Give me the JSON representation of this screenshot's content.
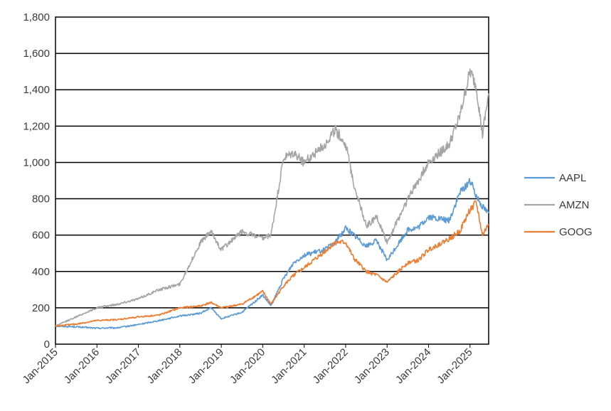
{
  "chart_data": {
    "type": "line",
    "title": "",
    "xlabel": "",
    "ylabel": "",
    "ylim": [
      0,
      1800
    ],
    "yticks": [
      "0",
      "200",
      "400",
      "600",
      "800",
      "1,000",
      "1,200",
      "1,400",
      "1,600",
      "1,800"
    ],
    "xticks": [
      "Jan-2015",
      "Jan-2016",
      "Jan-2017",
      "Jan-2018",
      "Jan-2019",
      "Jan-2020",
      "Jan-2021",
      "Jan-2022",
      "Jan-2023",
      "Jan-2024",
      "Jan-2025"
    ],
    "grid": "horizontal",
    "legend_position": "right",
    "x": [
      2015.0,
      2015.5,
      2016.0,
      2016.5,
      2017.0,
      2017.5,
      2018.0,
      2018.5,
      2018.75,
      2019.0,
      2019.5,
      2020.0,
      2020.2,
      2020.5,
      2020.75,
      2021.0,
      2021.5,
      2021.75,
      2022.0,
      2022.2,
      2022.5,
      2022.75,
      2023.0,
      2023.5,
      2023.75,
      2024.0,
      2024.5,
      2024.75,
      2025.0,
      2025.15,
      2025.3,
      2025.45
    ],
    "series": [
      {
        "name": "AAPL",
        "color": "#5b9bd5",
        "values": [
          100,
          95,
          88,
          90,
          108,
          130,
          155,
          170,
          200,
          140,
          175,
          270,
          210,
          360,
          450,
          490,
          520,
          560,
          640,
          600,
          540,
          570,
          460,
          630,
          640,
          700,
          680,
          830,
          900,
          820,
          760,
          720
        ]
      },
      {
        "name": "AMZN",
        "color": "#a5a5a5",
        "values": [
          100,
          150,
          200,
          220,
          250,
          300,
          330,
          560,
          620,
          520,
          620,
          580,
          600,
          1020,
          1050,
          1000,
          1100,
          1180,
          1100,
          880,
          650,
          700,
          560,
          800,
          900,
          1000,
          1100,
          1250,
          1500,
          1420,
          1150,
          1380
        ]
      },
      {
        "name": "GOOG",
        "color": "#ed7d31",
        "values": [
          100,
          110,
          130,
          135,
          150,
          160,
          200,
          210,
          230,
          200,
          220,
          290,
          220,
          320,
          380,
          420,
          510,
          560,
          560,
          470,
          400,
          380,
          340,
          450,
          460,
          520,
          580,
          620,
          740,
          780,
          600,
          660
        ]
      }
    ]
  }
}
